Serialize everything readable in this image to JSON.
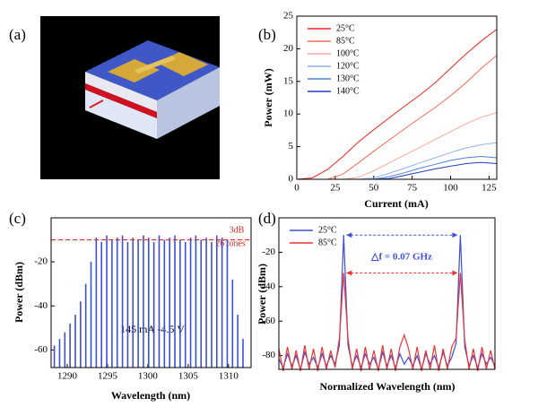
{
  "image": {
    "panel_label": "(a)"
  },
  "chart_data": [
    {
      "type": "line",
      "panel_label": "(b)",
      "x_label": "Current (mA)",
      "y_label": "Power (mW)",
      "x": [
        0,
        10,
        20,
        30,
        40,
        50,
        60,
        70,
        80,
        90,
        100,
        110,
        120,
        130
      ],
      "xlim": [
        0,
        130
      ],
      "xticks": [
        0,
        25,
        50,
        75,
        100,
        125
      ],
      "ylim": [
        0,
        25
      ],
      "yticks": [
        0,
        5,
        10,
        15,
        20,
        25
      ],
      "series": [
        {
          "name": "25°C",
          "color": "#e8261c",
          "values": [
            0,
            0.2,
            1.5,
            3.5,
            5.7,
            7.6,
            9.4,
            11.2,
            12.9,
            14.8,
            17,
            19.2,
            21.2,
            23
          ]
        },
        {
          "name": "85°C",
          "color": "#f26b5b",
          "values": [
            0,
            0,
            0,
            0.8,
            2.5,
            4.3,
            6,
            7.7,
            9.4,
            11,
            12.8,
            14.8,
            17,
            19
          ]
        },
        {
          "name": "100°C",
          "color": "#f7a8a0",
          "values": [
            0,
            0,
            0,
            0,
            0.3,
            1.3,
            2.5,
            3.7,
            4.9,
            6.1,
            7.3,
            8.5,
            9.5,
            10.2
          ]
        },
        {
          "name": "120°C",
          "color": "#8fb4e8",
          "values": [
            0,
            0,
            0,
            0,
            0,
            0.2,
            0.9,
            1.7,
            2.5,
            3.3,
            4.1,
            4.8,
            5.3,
            5.6
          ]
        },
        {
          "name": "130°C",
          "color": "#4d7fdc",
          "values": [
            0,
            0,
            0,
            0,
            0,
            0,
            0.4,
            1,
            1.7,
            2.3,
            2.9,
            3.3,
            3.5,
            3.3
          ]
        },
        {
          "name": "140°C",
          "color": "#1f3fbf",
          "values": [
            0,
            0,
            0,
            0,
            0,
            0,
            0.1,
            0.6,
            1.1,
            1.6,
            2,
            2.4,
            2.6,
            2.4
          ]
        }
      ]
    },
    {
      "type": "stem",
      "panel_label": "(c)",
      "x_label": "Wavelength (nm)",
      "y_label": "Power (dBm)",
      "color": "#3b4fd8",
      "ref_line": -10,
      "ref_color": "#e8261c",
      "annotations": [
        "3dB",
        "26 tones",
        "145 mA  -4.5 V"
      ],
      "x": [
        1288.4,
        1289.05,
        1289.7,
        1290.35,
        1291,
        1291.65,
        1292.3,
        1292.95,
        1293.6,
        1294.25,
        1294.9,
        1295.55,
        1296.2,
        1296.85,
        1297.5,
        1298.15,
        1298.8,
        1299.45,
        1300.1,
        1300.75,
        1301.4,
        1302.05,
        1302.7,
        1303.35,
        1304,
        1304.65,
        1305.3,
        1305.95,
        1306.6,
        1307.25,
        1307.9,
        1308.55,
        1309.2,
        1309.85,
        1310.5,
        1311.15,
        1311.8
      ],
      "values": [
        -58,
        -55,
        -52,
        -48,
        -44,
        -38,
        -30,
        -20,
        -9,
        -11,
        -8,
        -10,
        -9,
        -8,
        -11,
        -9,
        -10,
        -8,
        -9,
        -11,
        -8,
        -10,
        -9,
        -8,
        -10,
        -11,
        -9,
        -8,
        -10,
        -9,
        -11,
        -8,
        -9,
        -10,
        -28,
        -44,
        -55
      ],
      "xlim": [
        1288,
        1312.8
      ],
      "xticks": [
        1290,
        1295,
        1300,
        1305,
        1310
      ],
      "ylim": [
        -68,
        0
      ],
      "yticks": [
        -20,
        -40,
        -60
      ]
    },
    {
      "type": "line",
      "panel_label": "(d)",
      "x_label": "Normalized Wavelength (nm)",
      "y_label": "Power (dBm)",
      "annotation": "△f = 0.07 GHz",
      "x": [
        0,
        0.02,
        0.04,
        0.06,
        0.08,
        0.1,
        0.12,
        0.14,
        0.16,
        0.18,
        0.2,
        0.22,
        0.24,
        0.26,
        0.28,
        0.3,
        0.32,
        0.34,
        0.36,
        0.38,
        0.4,
        0.42,
        0.44,
        0.46,
        0.48,
        0.5,
        0.52,
        0.54,
        0.56,
        0.58,
        0.6,
        0.62,
        0.64,
        0.66,
        0.68,
        0.7,
        0.72,
        0.74,
        0.76,
        0.78,
        0.8,
        0.82,
        0.84,
        0.86,
        0.88,
        0.9,
        0.92,
        0.94,
        0.96,
        0.98,
        1
      ],
      "xlim": [
        0,
        1
      ],
      "ylim": [
        -88,
        0
      ],
      "yticks": [
        -20,
        -40,
        -60,
        -80
      ],
      "series": [
        {
          "name": "25°C",
          "color": "#3b4fd8",
          "values": [
            -82,
            -87,
            -79,
            -86,
            -80,
            -88,
            -78,
            -85,
            -81,
            -87,
            -79,
            -86,
            -80,
            -85,
            -74,
            -10,
            -74,
            -86,
            -80,
            -87,
            -79,
            -85,
            -81,
            -88,
            -78,
            -86,
            -80,
            -87,
            -79,
            -85,
            -81,
            -86,
            -80,
            -88,
            -79,
            -85,
            -80,
            -87,
            -78,
            -86,
            -81,
            -73,
            -10,
            -75,
            -86,
            -80,
            -87,
            -79,
            -85,
            -81,
            -86
          ]
        },
        {
          "name": "85°C",
          "color": "#ee3333",
          "values": [
            -76,
            -89,
            -75,
            -88,
            -77,
            -89,
            -74,
            -88,
            -76,
            -89,
            -75,
            -88,
            -77,
            -87,
            -70,
            -32,
            -70,
            -88,
            -76,
            -89,
            -75,
            -88,
            -77,
            -89,
            -74,
            -88,
            -76,
            -89,
            -75,
            -68,
            -76,
            -88,
            -75,
            -89,
            -77,
            -88,
            -74,
            -89,
            -76,
            -88,
            -75,
            -70,
            -32,
            -71,
            -88,
            -76,
            -89,
            -75,
            -88,
            -77,
            -88
          ]
        }
      ]
    }
  ]
}
